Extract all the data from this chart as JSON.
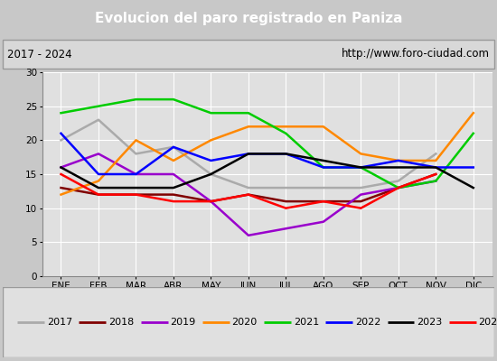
{
  "title": "Evolucion del paro registrado en Paniza",
  "subtitle_left": "2017 - 2024",
  "subtitle_right": "http://www.foro-ciudad.com",
  "months": [
    "ENE",
    "FEB",
    "MAR",
    "ABR",
    "MAY",
    "JUN",
    "JUL",
    "AGO",
    "SEP",
    "OCT",
    "NOV",
    "DIC"
  ],
  "ylim": [
    0,
    30
  ],
  "yticks": [
    0,
    5,
    10,
    15,
    20,
    25,
    30
  ],
  "series": {
    "2017": {
      "color": "#aaaaaa",
      "values": [
        20,
        23,
        18,
        19,
        15,
        13,
        13,
        13,
        13,
        14,
        18,
        null
      ]
    },
    "2018": {
      "color": "#800000",
      "values": [
        13,
        12,
        12,
        12,
        11,
        12,
        11,
        11,
        11,
        13,
        15,
        null
      ]
    },
    "2019": {
      "color": "#9900cc",
      "values": [
        16,
        18,
        15,
        15,
        11,
        6,
        7,
        8,
        12,
        13,
        14,
        null
      ]
    },
    "2020": {
      "color": "#ff8800",
      "values": [
        12,
        14,
        20,
        17,
        20,
        22,
        22,
        22,
        18,
        17,
        17,
        24
      ]
    },
    "2021": {
      "color": "#00cc00",
      "values": [
        24,
        25,
        26,
        26,
        24,
        24,
        21,
        16,
        16,
        13,
        14,
        21
      ]
    },
    "2022": {
      "color": "#0000ff",
      "values": [
        21,
        15,
        15,
        19,
        17,
        18,
        18,
        16,
        16,
        17,
        16,
        16
      ]
    },
    "2023": {
      "color": "#000000",
      "values": [
        16,
        13,
        13,
        13,
        15,
        18,
        18,
        17,
        16,
        16,
        16,
        13
      ]
    },
    "2024": {
      "color": "#ff0000",
      "values": [
        15,
        12,
        12,
        11,
        11,
        12,
        10,
        11,
        10,
        13,
        15,
        null
      ]
    }
  },
  "bg_color": "#c8c8c8",
  "plot_bg_color": "#e0e0e0",
  "title_bg_color": "#4488cc",
  "title_color": "#ffffff",
  "header_bg_color": "#d8d8d8",
  "grid_color": "#ffffff",
  "legend_bg_color": "#e0e0e0"
}
